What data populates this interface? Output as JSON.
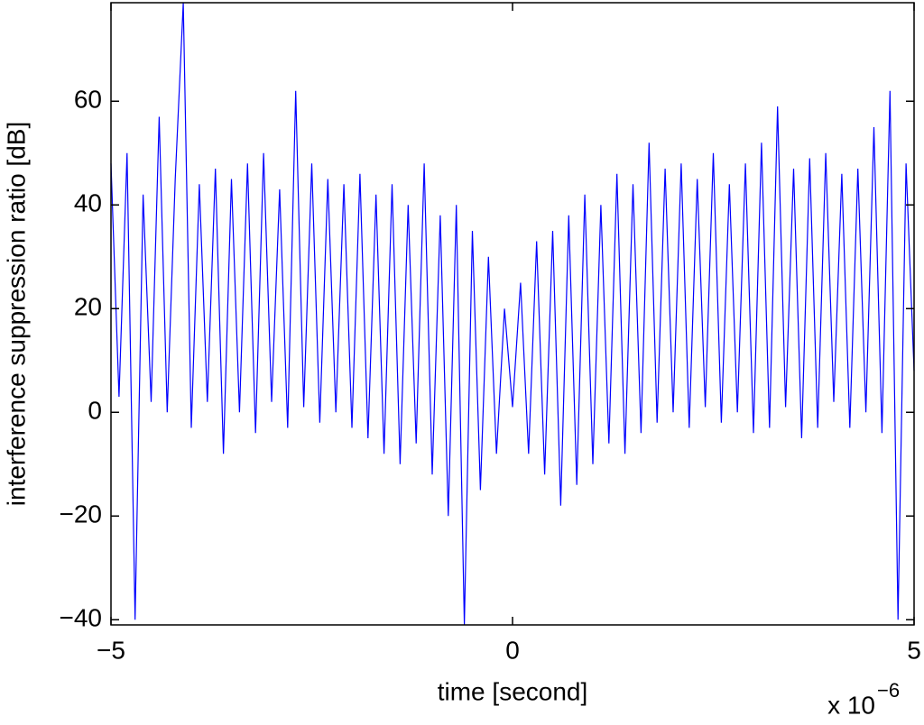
{
  "chart_data": {
    "type": "line",
    "xlabel": "time [second]",
    "ylabel": "interference suppression ratio [dB]",
    "x_multiplier": "x 10",
    "x_multiplier_exponent": "−6",
    "x": [
      -5.0,
      -4.9,
      -4.8,
      -4.7,
      -4.6,
      -4.5,
      -4.4,
      -4.3,
      -4.2,
      -4.1,
      -4.0,
      -3.9,
      -3.8,
      -3.7,
      -3.6,
      -3.5,
      -3.4,
      -3.3,
      -3.2,
      -3.1,
      -3.0,
      -2.9,
      -2.8,
      -2.7,
      -2.6,
      -2.5,
      -2.4,
      -2.3,
      -2.2,
      -2.1,
      -2.0,
      -1.9,
      -1.8,
      -1.7,
      -1.6,
      -1.5,
      -1.4,
      -1.3,
      -1.2,
      -1.1,
      -1.0,
      -0.9,
      -0.8,
      -0.7,
      -0.6,
      -0.5,
      -0.4,
      -0.3,
      -0.2,
      -0.1,
      0.0,
      0.1,
      0.2,
      0.3,
      0.4,
      0.5,
      0.6,
      0.7,
      0.8,
      0.9,
      1.0,
      1.1,
      1.2,
      1.3,
      1.4,
      1.5,
      1.6,
      1.7,
      1.8,
      1.9,
      2.0,
      2.1,
      2.2,
      2.3,
      2.4,
      2.5,
      2.6,
      2.7,
      2.8,
      2.9,
      3.0,
      3.1,
      3.2,
      3.3,
      3.4,
      3.5,
      3.6,
      3.7,
      3.8,
      3.9,
      4.0,
      4.1,
      4.2,
      4.3,
      4.4,
      4.5,
      4.6,
      4.7,
      4.8,
      4.9,
      5.0
    ],
    "series": [
      {
        "color": "#0000ff",
        "values": [
          48,
          3,
          50,
          -40,
          42,
          2,
          57,
          0,
          45,
          79,
          -3,
          44,
          2,
          47,
          -8,
          45,
          0,
          48,
          -4,
          50,
          2,
          43,
          -3,
          62,
          1,
          48,
          -2,
          45,
          0,
          44,
          -3,
          46,
          -5,
          42,
          -8,
          44,
          -10,
          40,
          -6,
          48,
          -12,
          38,
          -20,
          40,
          -41,
          35,
          -15,
          30,
          -8,
          20,
          1,
          25,
          -8,
          33,
          -12,
          35,
          -18,
          38,
          -14,
          42,
          -10,
          40,
          -6,
          46,
          -8,
          44,
          -4,
          52,
          -2,
          47,
          0,
          48,
          -3,
          45,
          1,
          50,
          -2,
          44,
          0,
          48,
          -4,
          52,
          -3,
          59,
          1,
          47,
          -5,
          49,
          -3,
          50,
          2,
          46,
          -3,
          47,
          0,
          55,
          -4,
          62,
          -40,
          48,
          8
        ]
      }
    ],
    "xlim": [
      -5,
      5
    ],
    "ylim": [
      -41,
      79
    ],
    "xticks": [
      {
        "value": -5,
        "label": "−5"
      },
      0,
      5
    ],
    "yticks": [
      {
        "value": -40,
        "label": "−40"
      },
      {
        "value": -20,
        "label": "−20"
      },
      0,
      20,
      40,
      60
    ],
    "grid": false
  }
}
